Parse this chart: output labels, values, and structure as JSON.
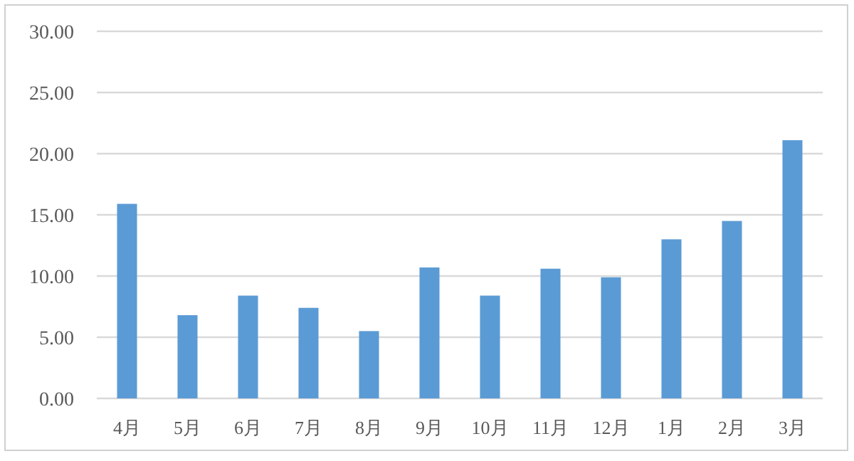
{
  "chart_data": {
    "type": "bar",
    "categories": [
      "4月",
      "5月",
      "6月",
      "7月",
      "8月",
      "9月",
      "10月",
      "11月",
      "12月",
      "1月",
      "2月",
      "3月"
    ],
    "values": [
      15.9,
      6.8,
      8.4,
      7.4,
      5.5,
      10.7,
      8.4,
      10.6,
      9.9,
      13.0,
      14.5,
      21.1
    ],
    "color": "#5b9bd5",
    "ylim": [
      0,
      30
    ],
    "yticks": [
      {
        "value": 0,
        "label": "0.00"
      },
      {
        "value": 5,
        "label": "5.00"
      },
      {
        "value": 10,
        "label": "10.00"
      },
      {
        "value": 15,
        "label": "15.00"
      },
      {
        "value": 20,
        "label": "20.00"
      },
      {
        "value": 25,
        "label": "25.00"
      },
      {
        "value": 30,
        "label": "30.00"
      }
    ],
    "grid": "y"
  }
}
